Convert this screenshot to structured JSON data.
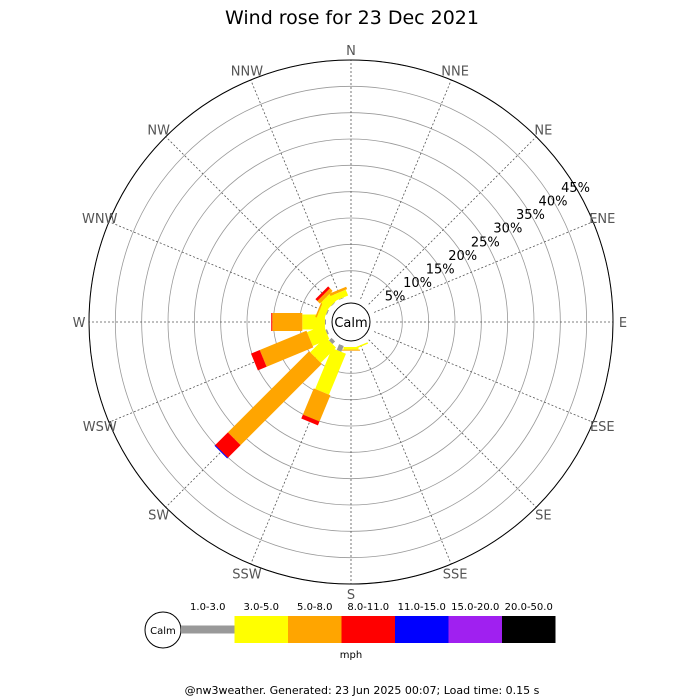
{
  "chart_data": {
    "type": "wind_rose",
    "title": "Wind rose for 23 Dec 2021",
    "center_label": "Calm",
    "directions": [
      "N",
      "NNE",
      "NE",
      "ENE",
      "E",
      "ESE",
      "SE",
      "SSE",
      "S",
      "SSW",
      "SW",
      "WSW",
      "W",
      "WNW",
      "NW",
      "NNW"
    ],
    "radial_ticks": [
      5,
      10,
      15,
      20,
      25,
      30,
      35,
      40,
      45
    ],
    "radial_tick_suffix": "%",
    "radial_max": 45,
    "grid": true,
    "speed_bins": [
      {
        "label": "1.0-3.0",
        "color": "#999999"
      },
      {
        "label": "3.0-5.0",
        "color": "#ffff00"
      },
      {
        "label": "5.0-8.0",
        "color": "#ffa500"
      },
      {
        "label": "8.0-11.0",
        "color": "#ff0000"
      },
      {
        "label": "11.0-15.0",
        "color": "#0000ff"
      },
      {
        "label": "15.0-20.0",
        "color": "#a020f0"
      },
      {
        "label": "20.0-50.0",
        "color": "#000000"
      }
    ],
    "units": "mph",
    "series": [
      {
        "direction": "S",
        "values": [
          0,
          0.5,
          0.2,
          0,
          0,
          0,
          0
        ]
      },
      {
        "direction": "SSE",
        "values": [
          0,
          0.3,
          0,
          0,
          0,
          0,
          0
        ]
      },
      {
        "direction": "SSW",
        "values": [
          1.2,
          8.4,
          5.4,
          0.8,
          0,
          0,
          0
        ]
      },
      {
        "direction": "SW",
        "values": [
          0.7,
          4.1,
          21.8,
          3.4,
          0.2,
          0,
          0
        ]
      },
      {
        "direction": "WSW",
        "values": [
          0.3,
          3.4,
          9.6,
          1.8,
          0,
          0,
          0
        ]
      },
      {
        "direction": "W",
        "values": [
          0.2,
          4.3,
          5.7,
          0.2,
          0,
          0,
          0
        ]
      },
      {
        "direction": "WNW",
        "values": [
          0.2,
          1.4,
          0.3,
          0,
          0,
          0,
          0
        ]
      },
      {
        "direction": "NW",
        "values": [
          0.1,
          1.8,
          0.7,
          0.5,
          0,
          0,
          0
        ]
      },
      {
        "direction": "NNW",
        "values": [
          0.1,
          1.2,
          0.5,
          0,
          0,
          0,
          0
        ]
      }
    ]
  },
  "footer": "@nw3weather. Generated: 23 Jun 2025 00:07; Load time: 0.15 s"
}
